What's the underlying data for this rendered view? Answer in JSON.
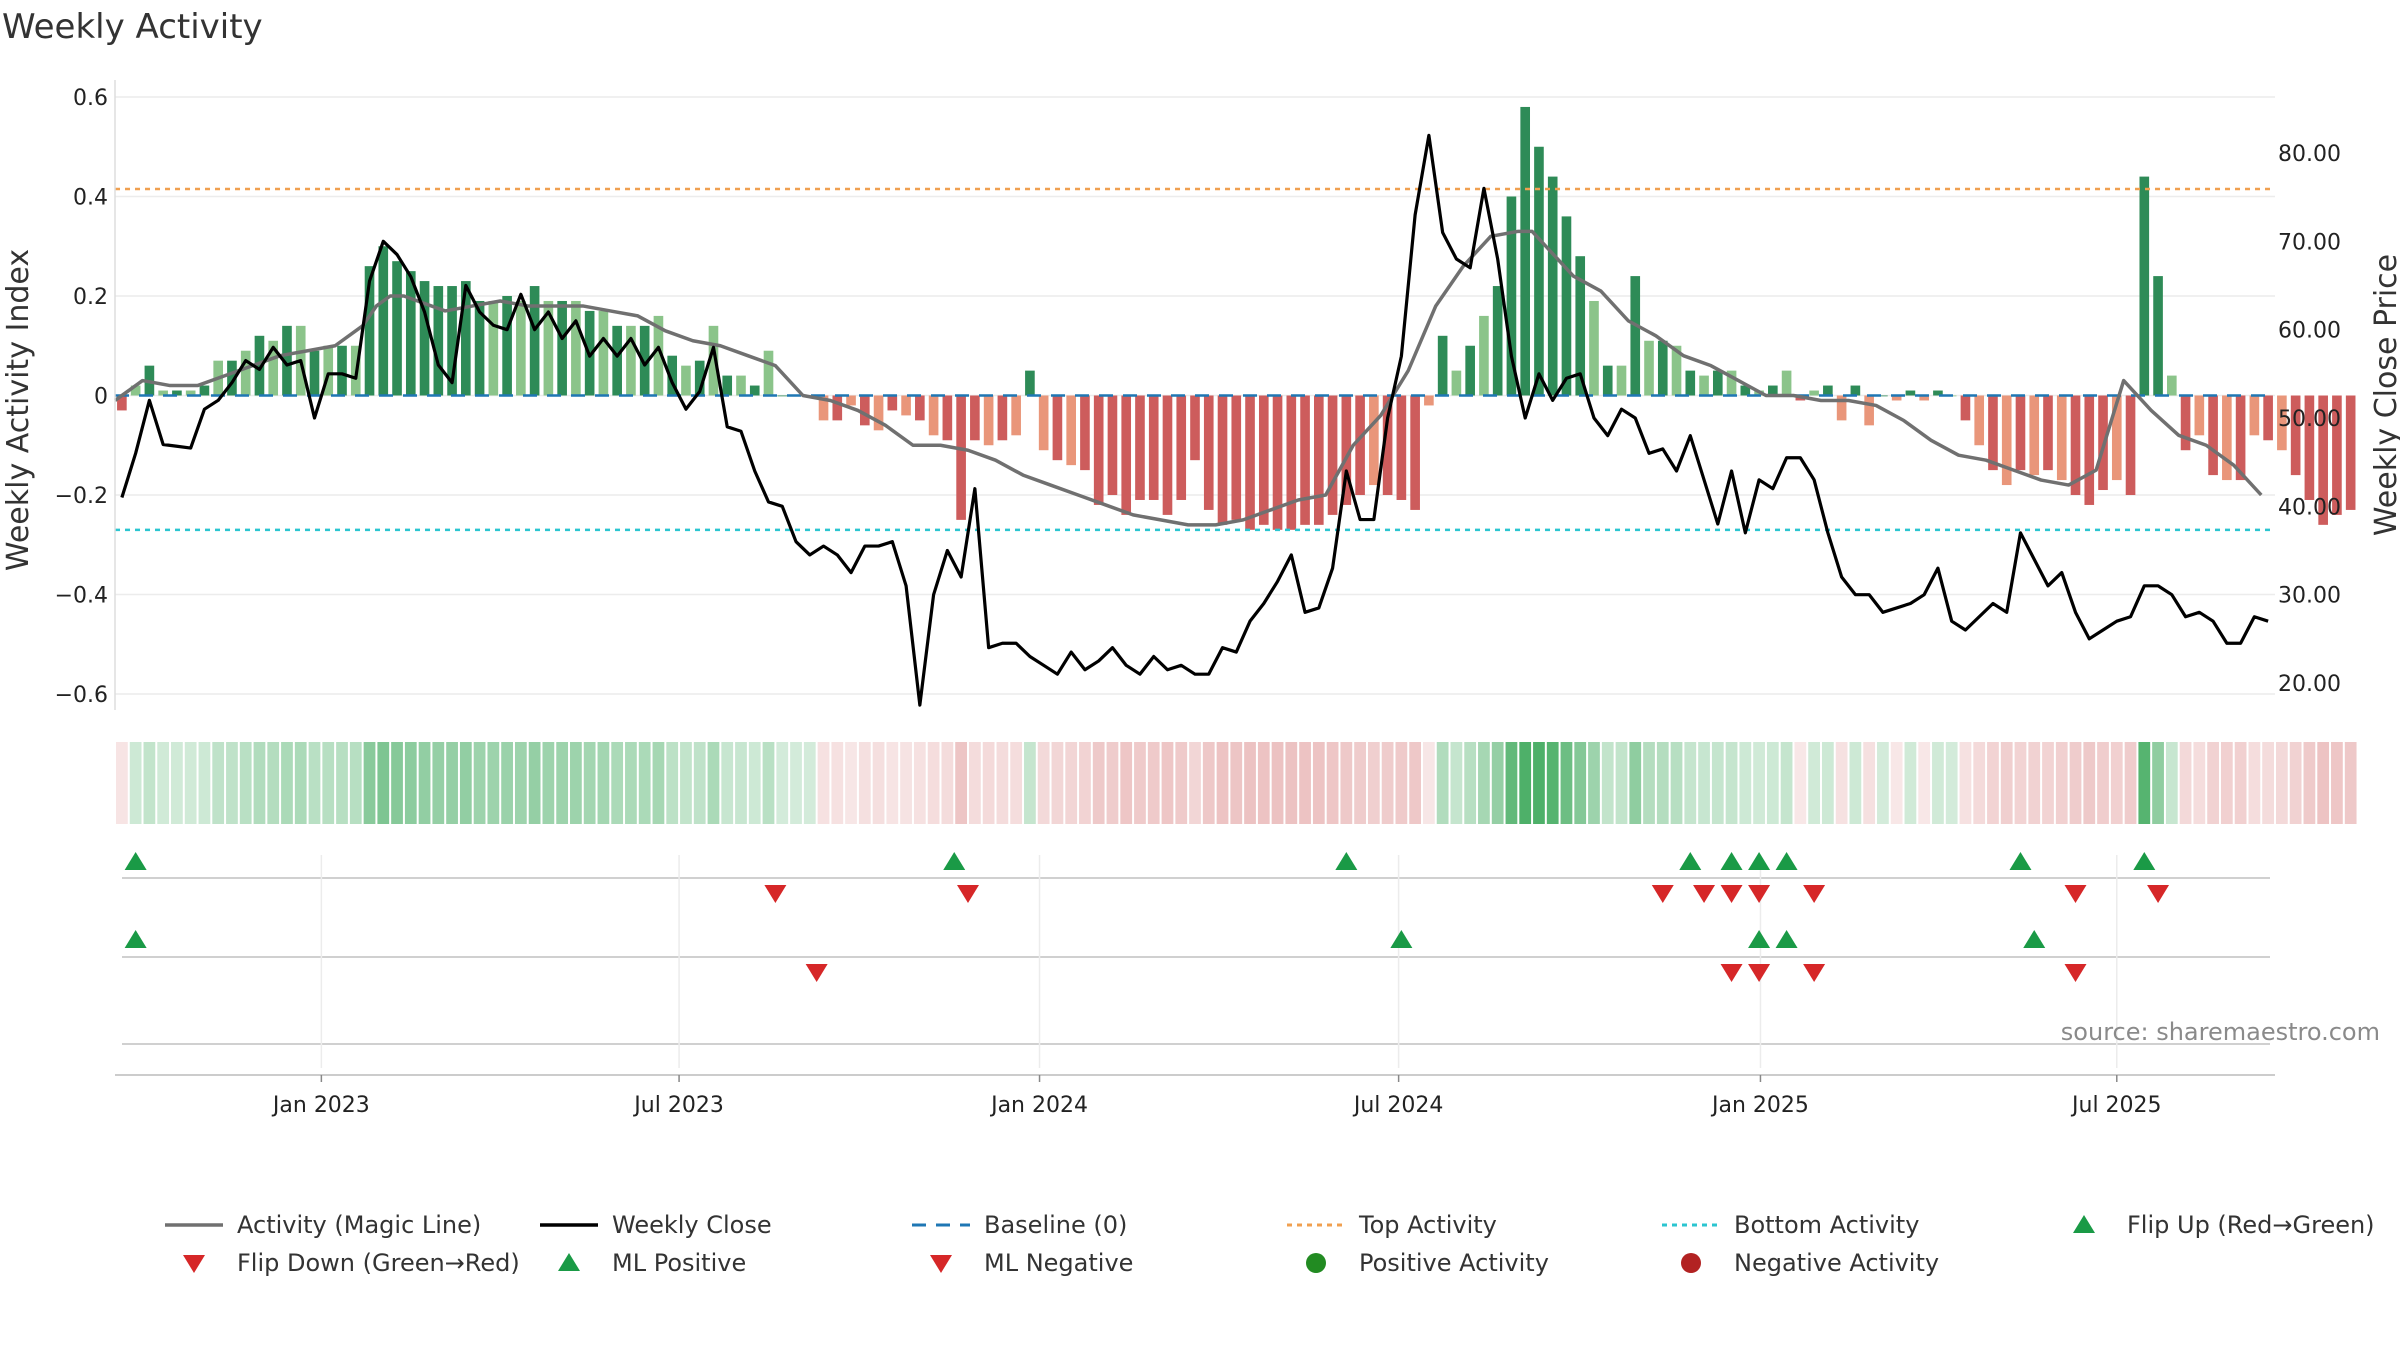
{
  "chart_data": {
    "type": "bar+line",
    "title": "Weekly Activity",
    "ylabel_left": "Weekly Activity Index",
    "ylabel_right": "Weekly Close Price",
    "ylim_left": [
      -0.64,
      0.6
    ],
    "yticks_left": [
      0.6,
      0.4,
      0.2,
      0,
      -0.2,
      -0.4,
      -0.6
    ],
    "ytick_labels_left": [
      "0.6",
      "0.4",
      "0.2",
      "0",
      "−0.2",
      "−0.4",
      "−0.6"
    ],
    "ylim_right": [
      16.7,
      86.4
    ],
    "yticks_right": [
      80,
      70,
      60,
      50,
      40,
      30,
      20
    ],
    "ytick_labels_right": [
      "80.00",
      "70.00",
      "60.00",
      "50.00",
      "40.00",
      "30.00",
      "20.00"
    ],
    "x_range_weeks": [
      0,
      157
    ],
    "xticks_weeks": [
      15,
      41,
      67.2,
      93.3,
      119.6,
      145.5
    ],
    "xtick_labels": [
      "Jan 2023",
      "Jul 2023",
      "Jan 2024",
      "Jul 2024",
      "Jan 2025",
      "Jul 2025"
    ],
    "top_activity_level": 0.415,
    "bottom_activity_level": -0.27,
    "activity_weekly": [
      -0.03,
      0.02,
      0.06,
      0.01,
      0.01,
      0.01,
      0.02,
      0.07,
      0.07,
      0.09,
      0.12,
      0.11,
      0.14,
      0.14,
      0.09,
      0.1,
      0.1,
      0.1,
      0.26,
      0.3,
      0.27,
      0.25,
      0.23,
      0.22,
      0.22,
      0.23,
      0.19,
      0.19,
      0.2,
      0.19,
      0.22,
      0.19,
      0.19,
      0.19,
      0.17,
      0.17,
      0.14,
      0.14,
      0.14,
      0.16,
      0.08,
      0.06,
      0.07,
      0.14,
      0.04,
      0.04,
      0.02,
      0.09,
      0.0,
      0.0,
      0.0,
      -0.05,
      -0.05,
      -0.02,
      -0.06,
      -0.07,
      -0.03,
      -0.04,
      -0.05,
      -0.08,
      -0.09,
      -0.25,
      -0.09,
      -0.1,
      -0.09,
      -0.08,
      0.05,
      -0.11,
      -0.13,
      -0.14,
      -0.15,
      -0.22,
      -0.2,
      -0.24,
      -0.21,
      -0.21,
      -0.24,
      -0.21,
      -0.13,
      -0.23,
      -0.26,
      -0.25,
      -0.27,
      -0.26,
      -0.27,
      -0.27,
      -0.26,
      -0.26,
      -0.24,
      -0.22,
      -0.2,
      -0.18,
      -0.2,
      -0.21,
      -0.23,
      -0.02,
      0.12,
      0.05,
      0.1,
      0.16,
      0.22,
      0.4,
      0.58,
      0.5,
      0.44,
      0.36,
      0.28,
      0.19,
      0.06,
      0.06,
      0.24,
      0.11,
      0.11,
      0.1,
      0.05,
      0.04,
      0.05,
      0.05,
      0.02,
      0.01,
      0.02,
      0.05,
      -0.01,
      0.01,
      0.02,
      -0.05,
      0.02,
      -0.06,
      0.0,
      -0.01,
      0.01,
      -0.01,
      0.01,
      0.0,
      -0.05,
      -0.1,
      -0.15,
      -0.18,
      -0.15,
      -0.16,
      -0.15,
      -0.17,
      -0.2,
      -0.22,
      -0.19,
      -0.17,
      -0.2,
      0.44,
      0.24,
      0.04,
      -0.11,
      -0.08,
      -0.16,
      -0.17,
      -0.17,
      -0.08,
      -0.09,
      -0.11,
      -0.16,
      -0.21,
      -0.26,
      -0.24,
      -0.23
    ],
    "series": [
      {
        "name": "Activity (Magic Line)",
        "color": "#707070",
        "x": [
          0,
          2,
          4,
          6,
          8,
          10,
          12,
          14,
          16,
          18,
          19,
          20,
          21,
          22,
          24,
          26,
          28,
          30,
          32,
          34,
          36,
          38,
          40,
          42,
          44,
          46,
          48,
          50,
          52,
          54,
          56,
          58,
          60,
          62,
          64,
          66,
          68,
          70,
          72,
          74,
          76,
          78,
          80,
          82,
          84,
          86,
          88,
          90,
          92,
          94,
          96,
          98,
          100,
          102,
          103,
          104,
          106,
          108,
          110,
          112,
          114,
          116,
          118,
          120,
          122,
          124,
          126,
          128,
          130,
          132,
          134,
          136,
          138,
          140,
          142,
          144,
          146,
          148,
          150,
          152,
          154,
          156
        ],
        "values": [
          -0.01,
          0.03,
          0.02,
          0.02,
          0.04,
          0.06,
          0.08,
          0.09,
          0.1,
          0.14,
          0.18,
          0.2,
          0.2,
          0.19,
          0.17,
          0.18,
          0.19,
          0.18,
          0.18,
          0.18,
          0.17,
          0.16,
          0.13,
          0.11,
          0.1,
          0.08,
          0.06,
          0.0,
          -0.01,
          -0.03,
          -0.06,
          -0.1,
          -0.1,
          -0.11,
          -0.13,
          -0.16,
          -0.18,
          -0.2,
          -0.22,
          -0.24,
          -0.25,
          -0.26,
          -0.26,
          -0.25,
          -0.23,
          -0.21,
          -0.2,
          -0.1,
          -0.04,
          0.05,
          0.18,
          0.26,
          0.32,
          0.33,
          0.33,
          0.3,
          0.24,
          0.21,
          0.15,
          0.12,
          0.08,
          0.06,
          0.03,
          0.0,
          0.0,
          -0.01,
          -0.01,
          -0.02,
          -0.05,
          -0.09,
          -0.12,
          -0.13,
          -0.15,
          -0.17,
          -0.18,
          -0.15,
          0.03,
          -0.03,
          -0.08,
          -0.1,
          -0.14,
          -0.2
        ]
      },
      {
        "name": "Weekly Close",
        "color": "#000000",
        "x": [
          0,
          1,
          2,
          3,
          4,
          5,
          6,
          7,
          8,
          9,
          10,
          11,
          12,
          13,
          14,
          15,
          16,
          17,
          18,
          19,
          20,
          21,
          22,
          23,
          24,
          25,
          26,
          27,
          28,
          29,
          30,
          31,
          32,
          33,
          34,
          35,
          36,
          37,
          38,
          39,
          40,
          41,
          42,
          43,
          44,
          45,
          46,
          47,
          48,
          49,
          50,
          51,
          52,
          53,
          54,
          55,
          56,
          57,
          58,
          59,
          60,
          61,
          62,
          63,
          64,
          65,
          66,
          67,
          68,
          69,
          70,
          71,
          72,
          73,
          74,
          75,
          76,
          77,
          78,
          79,
          80,
          81,
          82,
          83,
          84,
          85,
          86,
          87,
          88,
          89,
          90,
          91,
          92,
          93,
          94,
          95,
          96,
          97,
          98,
          99,
          100,
          101,
          102,
          103,
          104,
          105,
          106,
          107,
          108,
          109,
          110,
          111,
          112,
          113,
          114,
          115,
          116,
          117,
          118,
          119,
          120,
          121,
          122,
          123,
          124,
          125,
          126,
          127,
          128,
          129,
          130,
          131,
          132,
          133,
          134,
          135,
          136,
          137,
          138,
          139,
          140,
          141,
          142,
          143,
          144,
          145,
          146,
          147,
          148,
          149,
          150,
          151,
          152,
          153,
          154,
          155,
          156
        ],
        "values": [
          41,
          46,
          52,
          47,
          46.8,
          46.6,
          51,
          52,
          54,
          56.5,
          55.5,
          58,
          56,
          56.5,
          50,
          55,
          55,
          54.5,
          65.5,
          70,
          68.5,
          66,
          62,
          56,
          54,
          65,
          62,
          60.5,
          60,
          64,
          60,
          62,
          59,
          61,
          57,
          59,
          57,
          59,
          56,
          58,
          54,
          51,
          53,
          58,
          49,
          48.5,
          44,
          40.5,
          40,
          36,
          34.5,
          35.5,
          34.5,
          32.5,
          35.5,
          35.5,
          36,
          31,
          17.5,
          30,
          35,
          32,
          42,
          24,
          24.5,
          24.5,
          23,
          22,
          21,
          23.5,
          21.5,
          22.5,
          24,
          22,
          21,
          23,
          21.5,
          22,
          21,
          21,
          24,
          23.5,
          27,
          29,
          31.5,
          34.5,
          28,
          28.5,
          33,
          44,
          38.5,
          38.5,
          50,
          57,
          73,
          82,
          71,
          68,
          67,
          76,
          68,
          57,
          50,
          55,
          52,
          54.5,
          55,
          50,
          48,
          51,
          50,
          46,
          46.5,
          44,
          48,
          43,
          38,
          44,
          37,
          43,
          42,
          45.5,
          45.5,
          43,
          37,
          32,
          30,
          30,
          28,
          28.5,
          29,
          30,
          33,
          27,
          26,
          27.5,
          29,
          28,
          37,
          34,
          31,
          32.5,
          28,
          25,
          26,
          27,
          27.5,
          31,
          31,
          30,
          27.5,
          28,
          27,
          24.5,
          24.5,
          27.5,
          27
        ]
      }
    ],
    "markers": {
      "flip_up": [
        1.5,
        61,
        89.5,
        114.5,
        117.5,
        119.5,
        121.5,
        138.5,
        147.5
      ],
      "flip_down": [
        48,
        62,
        112.5,
        115.5,
        117.5,
        119.5,
        123.5,
        142.5,
        148.5
      ],
      "ml_positive": [
        1.5,
        93.5,
        119.5,
        121.5,
        139.5
      ],
      "ml_negative": [
        51,
        117.5,
        119.5,
        123.5,
        142.5
      ]
    },
    "colors": {
      "bar_pos_strong": "#2e8b57",
      "bar_pos_weak": "#8bc48a",
      "bar_neg_strong": "#cd5c5c",
      "bar_neg_weak": "#e9967a",
      "top_line": "#f0a050",
      "bottom_line": "#2bc5d0",
      "baseline": "#1f77b4",
      "marker_up": "#1a9a46",
      "marker_down": "#d62728",
      "positive_dot": "#228b22",
      "negative_dot": "#b22222"
    },
    "annotation": "source: sharemaestro.com",
    "legend": {
      "position": "bottom",
      "entries": [
        {
          "label": "Activity (Magic Line)",
          "symbol": "line-gray"
        },
        {
          "label": "Weekly Close",
          "symbol": "line-black"
        },
        {
          "label": "Baseline (0)",
          "symbol": "dash-blue"
        },
        {
          "label": "Top Activity",
          "symbol": "dot-orange"
        },
        {
          "label": "Bottom Activity",
          "symbol": "dot-cyan"
        },
        {
          "label": "Flip Up (Red→Green)",
          "symbol": "tri-up-green"
        },
        {
          "label": "Flip Down (Green→Red)",
          "symbol": "tri-down-red"
        },
        {
          "label": "ML Positive",
          "symbol": "tri-up-green"
        },
        {
          "label": "ML Negative",
          "symbol": "tri-down-red"
        },
        {
          "label": "Positive Activity",
          "symbol": "dot-green"
        },
        {
          "label": "Negative Activity",
          "symbol": "dot-darkred"
        }
      ]
    }
  }
}
